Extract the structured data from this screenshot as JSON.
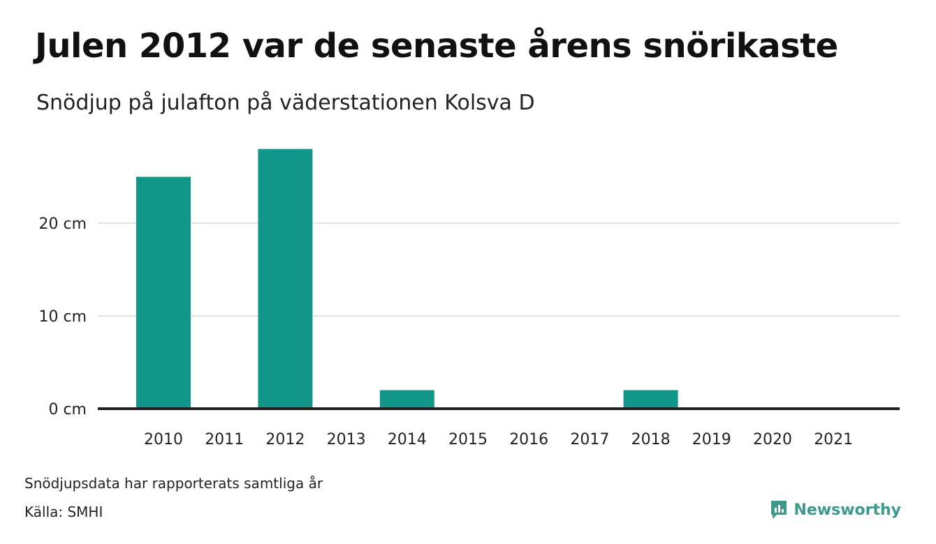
{
  "title": "Julen 2012 var de senaste årens snörikaste",
  "subtitle": "Snödjup på julafton på väderstationen Kolsva D",
  "footnote": "Snödjupsdata har rapporterats samtliga år",
  "source": "Källa: SMHI",
  "brand": {
    "name": "Newsworthy",
    "icon": "newsworthy-logo-icon",
    "color": "#3d9a8a"
  },
  "chart_data": {
    "type": "bar",
    "categories": [
      "2010",
      "2011",
      "2012",
      "2013",
      "2014",
      "2015",
      "2016",
      "2017",
      "2018",
      "2019",
      "2020",
      "2021"
    ],
    "values": [
      25,
      0,
      28,
      0,
      2,
      0,
      0,
      0,
      2,
      0,
      0,
      0
    ],
    "unit": "cm",
    "ylim": [
      0,
      28
    ],
    "yticks": [
      0,
      10,
      20
    ],
    "ytick_labels": [
      "0 cm",
      "10 cm",
      "20 cm"
    ],
    "grid": true,
    "bar_color": "#13968a",
    "grid_color": "#e2e2e2",
    "baseline_color": "#222222"
  }
}
